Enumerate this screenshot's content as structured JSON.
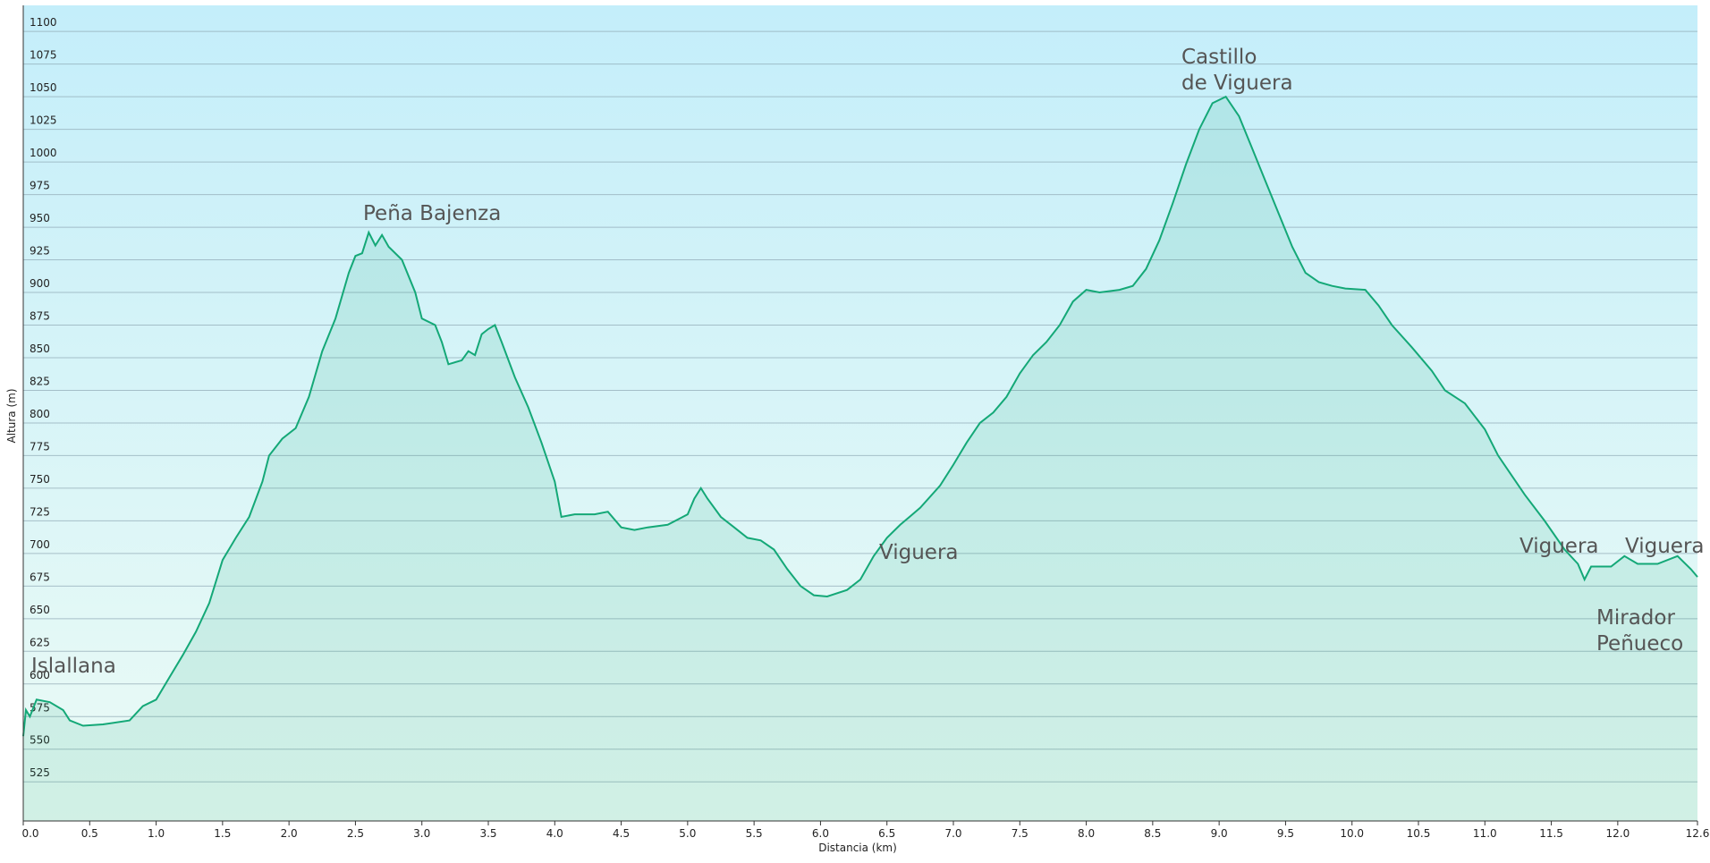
{
  "chart_data": {
    "type": "area",
    "x_label": "Distancia  (km)",
    "y_label": "Altura (m)",
    "xlim": [
      0,
      12.6
    ],
    "ylim": [
      495,
      1120
    ],
    "xticks": [
      {
        "value": 0,
        "label": "0.0"
      },
      0.5,
      {
        "value": 1,
        "label": "1.0"
      },
      1.5,
      {
        "value": 2,
        "label": "2.0"
      },
      2.5,
      {
        "value": 3,
        "label": "3.0"
      },
      3.5,
      {
        "value": 4,
        "label": "4.0"
      },
      4.5,
      {
        "value": 5,
        "label": "5.0"
      },
      5.5,
      {
        "value": 6,
        "label": "6.0"
      },
      6.5,
      {
        "value": 7,
        "label": "7.0"
      },
      7.5,
      {
        "value": 8,
        "label": "8.0"
      },
      8.5,
      {
        "value": 9,
        "label": "9.0"
      },
      9.5,
      {
        "value": 10,
        "label": "10.0"
      },
      10.5,
      {
        "value": 11,
        "label": "11.0"
      },
      11.5,
      {
        "value": 12,
        "label": "12.0"
      },
      12.6
    ],
    "yticks": [
      525,
      550,
      575,
      600,
      625,
      650,
      675,
      700,
      725,
      750,
      775,
      800,
      825,
      850,
      875,
      900,
      925,
      950,
      975,
      1000,
      1025,
      1050,
      1075,
      1100
    ],
    "grid": true,
    "color": "#14a877",
    "x": [
      0.0,
      0.02,
      0.05,
      0.1,
      0.2,
      0.3,
      0.35,
      0.45,
      0.6,
      0.8,
      0.9,
      1.0,
      1.1,
      1.2,
      1.3,
      1.4,
      1.5,
      1.6,
      1.7,
      1.8,
      1.85,
      1.95,
      2.05,
      2.15,
      2.25,
      2.35,
      2.45,
      2.5,
      2.55,
      2.6,
      2.65,
      2.7,
      2.75,
      2.85,
      2.95,
      3.0,
      3.1,
      3.15,
      3.2,
      3.3,
      3.35,
      3.4,
      3.45,
      3.5,
      3.55,
      3.6,
      3.7,
      3.8,
      3.9,
      4.0,
      4.05,
      4.15,
      4.3,
      4.4,
      4.5,
      4.6,
      4.7,
      4.85,
      5.0,
      5.05,
      5.1,
      5.15,
      5.25,
      5.35,
      5.45,
      5.55,
      5.65,
      5.75,
      5.85,
      5.95,
      6.05,
      6.2,
      6.3,
      6.4,
      6.5,
      6.6,
      6.75,
      6.9,
      7.0,
      7.1,
      7.2,
      7.3,
      7.4,
      7.5,
      7.6,
      7.7,
      7.8,
      7.9,
      8.0,
      8.1,
      8.25,
      8.35,
      8.45,
      8.55,
      8.65,
      8.75,
      8.85,
      8.95,
      9.05,
      9.15,
      9.25,
      9.35,
      9.45,
      9.55,
      9.65,
      9.75,
      9.85,
      9.95,
      10.1,
      10.2,
      10.3,
      10.45,
      10.6,
      10.7,
      10.85,
      11.0,
      11.1,
      11.2,
      11.3,
      11.45,
      11.6,
      11.7,
      11.75,
      11.8,
      11.95,
      12.05,
      12.15,
      12.3,
      12.45,
      12.55,
      12.6
    ],
    "values": [
      560,
      580,
      575,
      588,
      586,
      580,
      572,
      568,
      569,
      572,
      583,
      588,
      605,
      622,
      640,
      662,
      695,
      712,
      728,
      755,
      775,
      788,
      796,
      820,
      855,
      880,
      915,
      928,
      930,
      946,
      936,
      944,
      935,
      925,
      900,
      880,
      875,
      862,
      845,
      848,
      855,
      852,
      868,
      872,
      875,
      862,
      835,
      812,
      785,
      755,
      728,
      730,
      730,
      732,
      720,
      718,
      720,
      722,
      730,
      742,
      750,
      742,
      728,
      720,
      712,
      710,
      703,
      688,
      675,
      668,
      667,
      672,
      680,
      698,
      712,
      722,
      735,
      752,
      768,
      785,
      800,
      808,
      820,
      838,
      852,
      862,
      875,
      893,
      902,
      900,
      902,
      905,
      918,
      940,
      968,
      998,
      1025,
      1045,
      1050,
      1035,
      1010,
      985,
      960,
      935,
      915,
      908,
      905,
      903,
      902,
      890,
      875,
      858,
      840,
      825,
      815,
      795,
      775,
      760,
      745,
      725,
      703,
      692,
      680,
      690,
      690,
      698,
      692,
      692,
      698,
      688,
      682
    ],
    "annotations": [
      [
        "Islallana"
      ],
      [
        "Peña Bajenza"
      ],
      [
        "Castillo",
        "de Viguera"
      ],
      [
        "Viguera"
      ],
      [
        "Viguera"
      ],
      [
        "Viguera"
      ],
      [
        "Mirador",
        "Peñueco"
      ]
    ]
  }
}
